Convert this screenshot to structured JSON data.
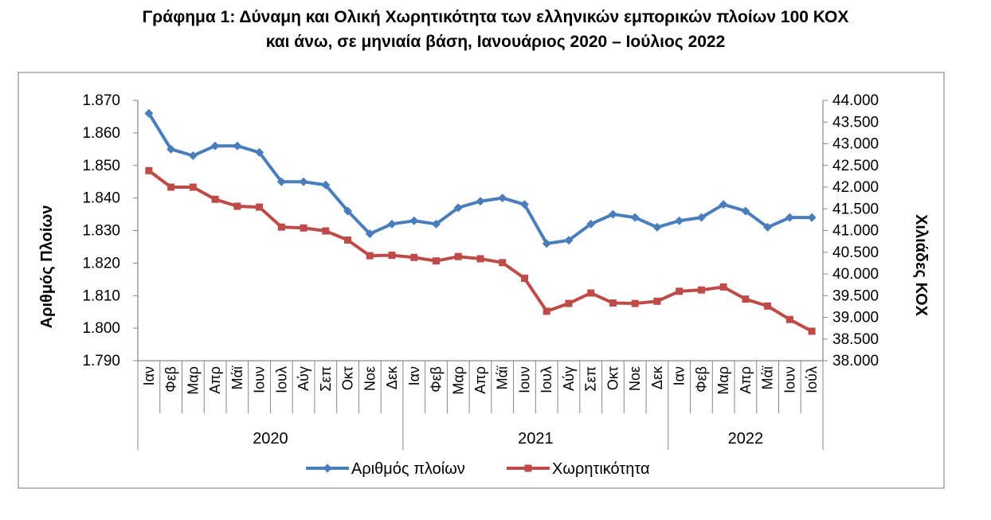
{
  "title_line1": "Γράφημα 1: Δύναμη και Ολική Χωρητικότητα των ελληνικών εμπορικών πλοίων 100 ΚΟΧ",
  "title_line2": "και άνω, σε μηνιαία βάση, Ιανουάριος 2020 – Ιούλιος 2022",
  "chart_data": {
    "type": "line",
    "grid": false,
    "legend_position": "bottom",
    "ylabel_left": "Αριθμός Πλοίων",
    "ylabel_right": "Χιλιάδες ΚΟΧ",
    "ylim_left": [
      1790,
      1870
    ],
    "ylim_right": [
      38000,
      44000
    ],
    "yticks_left": [
      "1.790",
      "1.800",
      "1.810",
      "1.820",
      "1.830",
      "1.840",
      "1.850",
      "1.860",
      "1.870"
    ],
    "yticks_right": [
      "38.000",
      "38.500",
      "39.000",
      "39.500",
      "40.000",
      "40.500",
      "41.000",
      "41.500",
      "42.000",
      "42.500",
      "43.000",
      "43.500",
      "44.000"
    ],
    "categories": [
      "Ιαν",
      "Φεβ",
      "Μαρ",
      "Απρ",
      "Μάϊ",
      "Ιουν",
      "Ιουλ",
      "Αύγ",
      "Σεπ",
      "Οκτ",
      "Νοε",
      "Δεκ",
      "Ιαν",
      "Φεβ",
      "Μαρ",
      "Απρ",
      "Μάϊ",
      "Ιουν",
      "Ιουλ",
      "Αύγ",
      "Σεπ",
      "Οκτ",
      "Νοε",
      "Δεκ",
      "Ιαν",
      "Φεβ",
      "Μαρ",
      "Απρ",
      "Μάϊ",
      "Ιουν",
      "Ιούλ"
    ],
    "years": [
      {
        "label": "2020",
        "count": 12
      },
      {
        "label": "2021",
        "count": 12
      },
      {
        "label": "2022",
        "count": 7
      }
    ],
    "series": [
      {
        "name": "Αριθμός πλοίων",
        "axis": "left",
        "color": "#4a7ebb",
        "marker": "diamond",
        "values": [
          1866,
          1855,
          1853,
          1856,
          1856,
          1854,
          1845,
          1845,
          1844,
          1836,
          1829,
          1832,
          1833,
          1832,
          1837,
          1839,
          1840,
          1838,
          1826,
          1827,
          1832,
          1835,
          1834,
          1831,
          1833,
          1834,
          1838,
          1836,
          1831,
          1834,
          1834
        ]
      },
      {
        "name": "Χωρητικότητα",
        "axis": "right",
        "color": "#be4b48",
        "marker": "square",
        "values": [
          42380,
          42000,
          42000,
          41720,
          41560,
          41540,
          41080,
          41060,
          40990,
          40780,
          40420,
          40430,
          40380,
          40300,
          40400,
          40350,
          40260,
          39900,
          39140,
          39320,
          39560,
          39330,
          39320,
          39370,
          39600,
          39630,
          39700,
          39420,
          39260,
          38950,
          38680
        ]
      }
    ]
  }
}
